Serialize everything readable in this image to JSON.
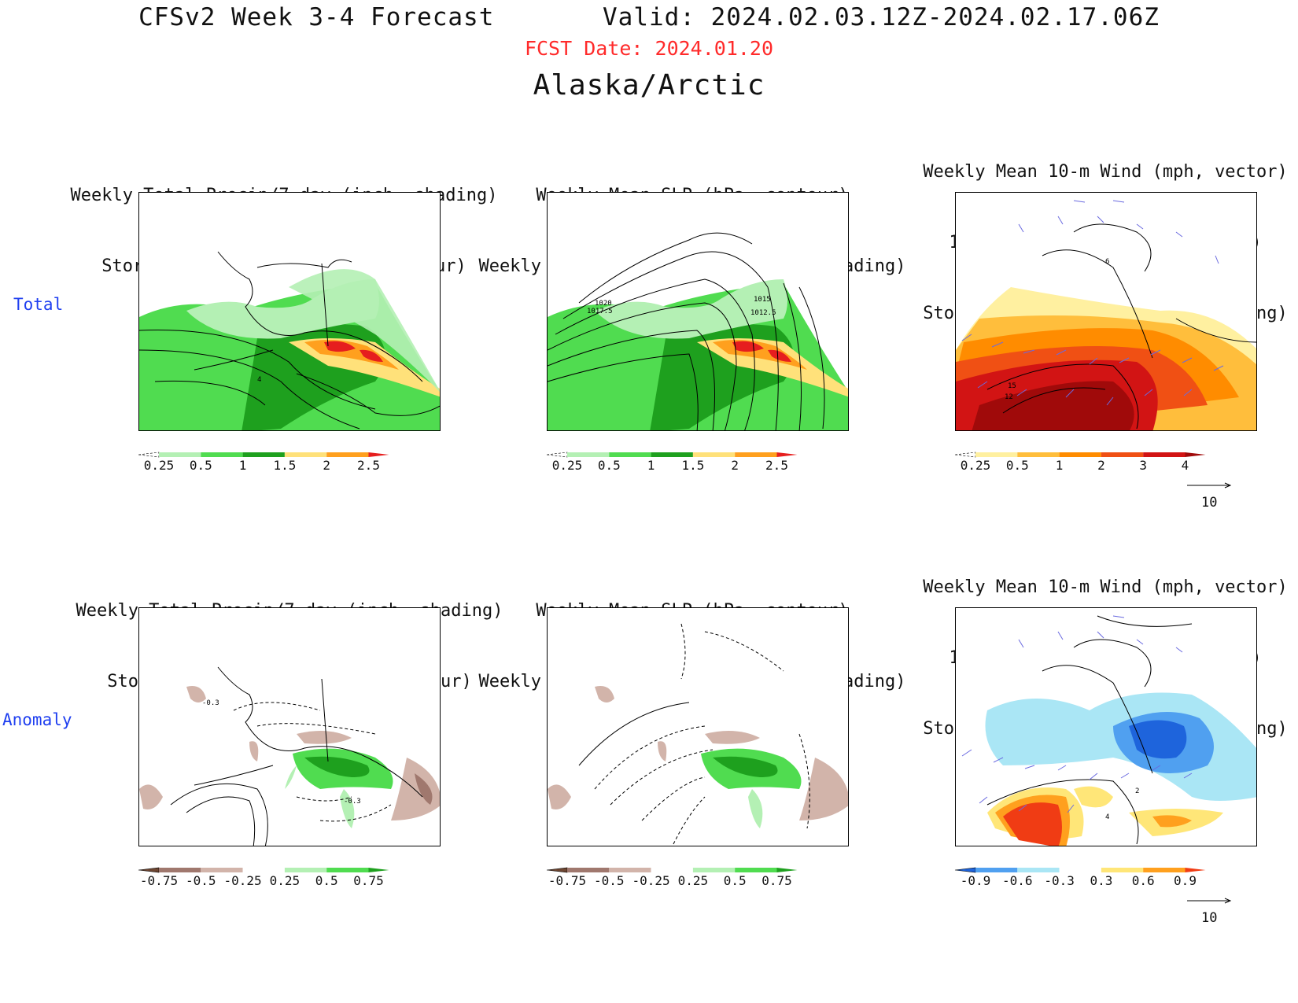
{
  "header": {
    "title": "CFSv2 Week 3-4 Forecast       Valid: 2024.02.03.12Z-2024.02.17.06Z",
    "fcst_date": "FCST Date: 2024.01.20",
    "region": "Alaska/Arctic"
  },
  "rows": {
    "total_label": "Total",
    "anomaly_label": "Anomaly"
  },
  "panels": {
    "total_precip": {
      "line1": "Weekly Total Precip/7-day (inch, shading)",
      "line2": "Storm Track Density/7-day (contour)",
      "contour_labels": [
        "4"
      ]
    },
    "total_slp": {
      "line1": "Weekly Mean SLP (hPa, contour)",
      "line2": "Weekly Total Precip/7-day (inch, shading)",
      "contour_labels": [
        "1020",
        "1017.5",
        "1015",
        "1012.5"
      ]
    },
    "total_wind": {
      "line1": "Weekly Mean 10-m Wind (mph, vector)",
      "line2": "10-m Wind Speed (mph, contour)",
      "line3": "Storm Track Density/7-day (shading)",
      "contour_labels": [
        "6",
        "15",
        "12"
      ]
    },
    "anom_precip": {
      "line1": "Weekly Total Precip/7-day (inch, shading)",
      "line2": "Storm Track Density/7-day (contour)",
      "contour_labels": [
        "-0.3",
        "-0.3"
      ]
    },
    "anom_slp": {
      "line1": "Weekly Mean SLP (hPa, contour)",
      "line2": "Weekly Total Precip/7-day (inch, shading)",
      "contour_labels": []
    },
    "anom_wind": {
      "line1": "Weekly Mean 10-m Wind (mph, vector)",
      "line2": "10-m Wind Speed (mph, contour)",
      "line3": "Storm Track Density/7-day (shading)",
      "contour_labels": [
        "4",
        "2"
      ]
    }
  },
  "colorbars": {
    "precip_total": {
      "ticks": [
        "0.25",
        "0.5",
        "1",
        "1.5",
        "2",
        "2.5"
      ],
      "colors": [
        "#ffffff",
        "#b4f0b4",
        "#50dc50",
        "#1ea01e",
        "#ffe17a",
        "#ffa01e",
        "#e61e1e"
      ]
    },
    "storm_total": {
      "ticks": [
        "0.25",
        "0.5",
        "1",
        "2",
        "3",
        "4"
      ],
      "colors": [
        "#ffffff",
        "#fff0a0",
        "#ffbe3c",
        "#ff8c00",
        "#f05014",
        "#d21414",
        "#a00a0a"
      ]
    },
    "precip_anom": {
      "ticks": [
        "-0.75",
        "-0.5",
        "-0.25",
        "0.25",
        "0.5",
        "0.75"
      ],
      "colors": [
        "#6e4632",
        "#a0786e",
        "#d2b4aa",
        "#ffffff",
        "#b4f0b4",
        "#50dc50",
        "#1ea01e"
      ]
    },
    "storm_anom": {
      "ticks": [
        "-0.9",
        "-0.6",
        "-0.3",
        "0.3",
        "0.6",
        "0.9"
      ],
      "colors": [
        "#1e64dc",
        "#50a0f0",
        "#aae6f5",
        "#ffffff",
        "#ffe678",
        "#ffa01e",
        "#f03c14"
      ]
    }
  },
  "vector_reference": {
    "label": "10"
  }
}
